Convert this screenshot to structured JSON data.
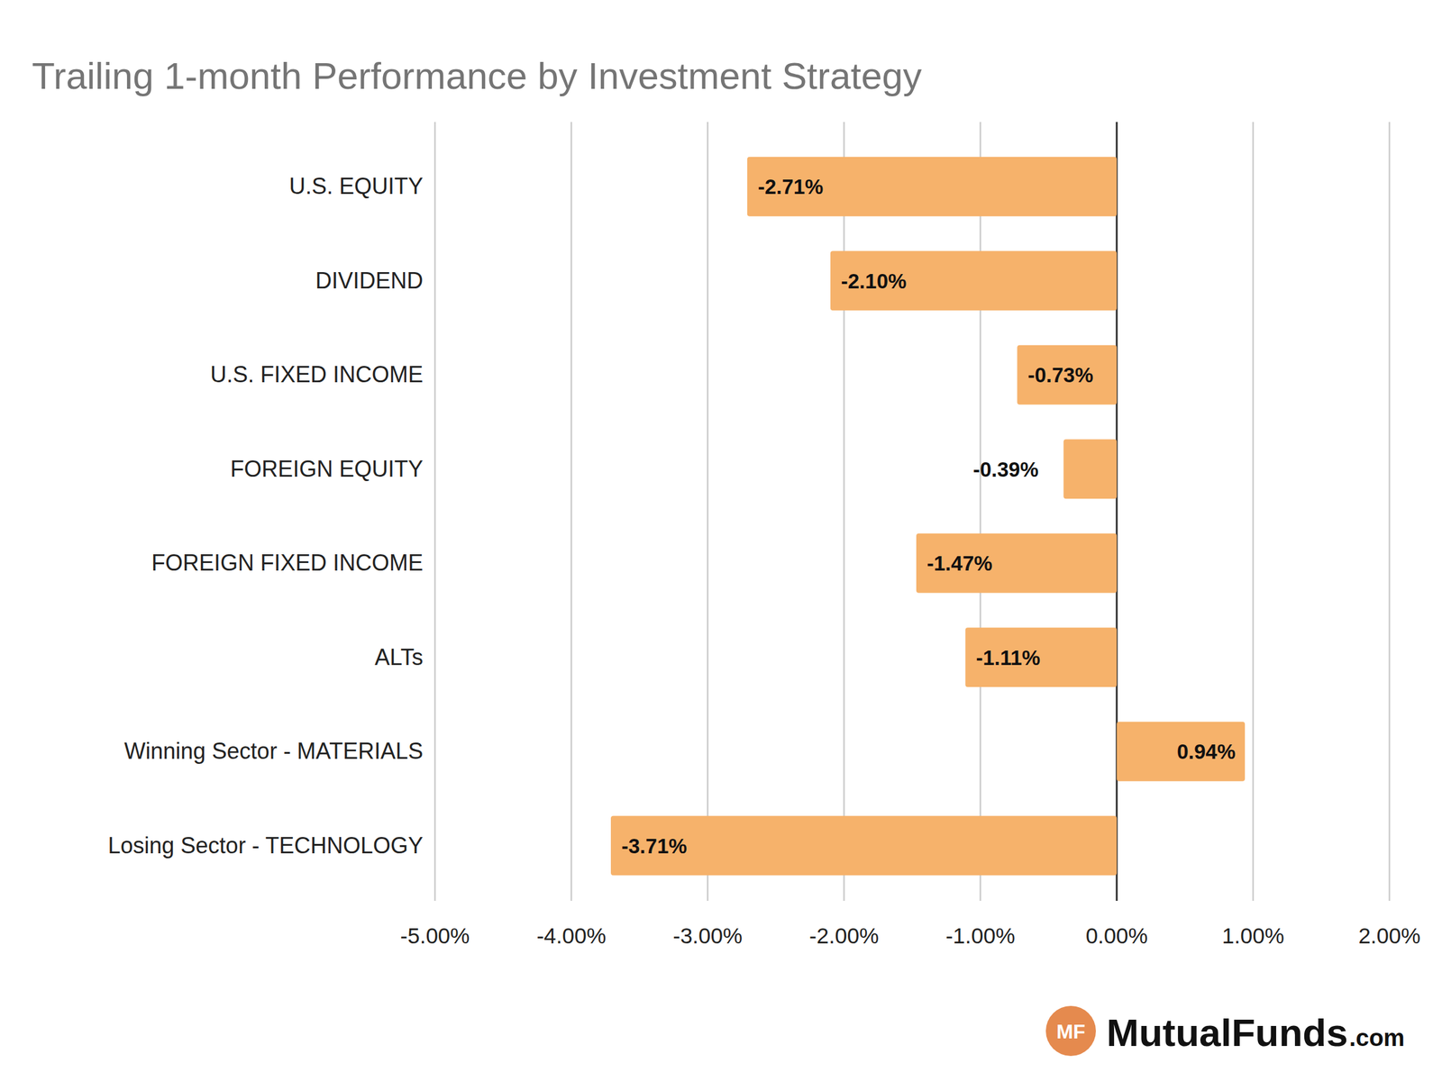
{
  "chart_data": {
    "type": "bar",
    "orientation": "horizontal",
    "title": "Trailing 1-month Performance by Investment Strategy",
    "categories": [
      "U.S. EQUITY",
      "DIVIDEND",
      "U.S. FIXED INCOME",
      "FOREIGN EQUITY",
      "FOREIGN FIXED INCOME",
      "ALTs",
      "Winning Sector - MATERIALS",
      "Losing Sector - TECHNOLOGY"
    ],
    "values": [
      -2.71,
      -2.1,
      -0.73,
      -0.39,
      -1.47,
      -1.11,
      0.94,
      -3.71
    ],
    "value_labels": [
      "-2.71%",
      "-2.10%",
      "-0.73%",
      "-0.39%",
      "-1.47%",
      "-1.11%",
      "0.94%",
      "-3.71%"
    ],
    "color": "#f6b26b",
    "data_labels": true,
    "grid": true,
    "xlim": [
      -5,
      2
    ],
    "xticks": [
      {
        "value": -5,
        "label": "-5.00%"
      },
      {
        "value": -4,
        "label": "-4.00%"
      },
      {
        "value": -3,
        "label": "-3.00%"
      },
      {
        "value": -2,
        "label": "-2.00%"
      },
      {
        "value": -1,
        "label": "-1.00%"
      },
      {
        "value": 0,
        "label": "0.00%"
      },
      {
        "value": 1,
        "label": "1.00%"
      },
      {
        "value": 2,
        "label": "2.00%"
      }
    ],
    "logo_badge": "MF",
    "logo": "MutualFunds",
    "logo_suffix": ".com"
  }
}
